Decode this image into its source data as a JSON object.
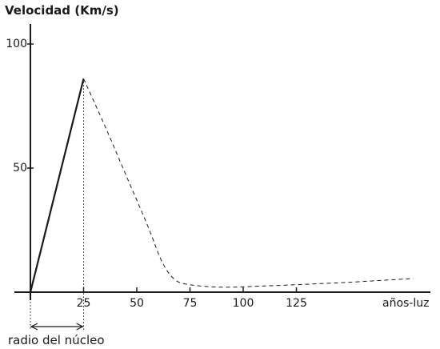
{
  "chart_data": {
    "type": "line",
    "ylabel": "Velocidad (Km/s)",
    "xlabel": "años-luz",
    "xlim": [
      0,
      190
    ],
    "ylim": [
      0,
      110
    ],
    "x_ticks": [
      25,
      50,
      75,
      100,
      125
    ],
    "y_ticks": [
      50,
      100
    ],
    "series": [
      {
        "style": "solid",
        "x": [
          0,
          25
        ],
        "y": [
          0,
          86
        ]
      },
      {
        "style": "dashed",
        "x": [
          25,
          35,
          45,
          55,
          62,
          68,
          75,
          90,
          110,
          130,
          150,
          170,
          180
        ],
        "y": [
          86,
          67,
          47,
          27,
          12,
          5,
          3,
          2,
          2.5,
          3.2,
          4,
          5,
          5.5
        ]
      }
    ],
    "annotations": [
      {
        "text": "radio del núcleo",
        "x_from": 0,
        "x_to": 25
      }
    ],
    "grid": false,
    "legend": "none"
  }
}
